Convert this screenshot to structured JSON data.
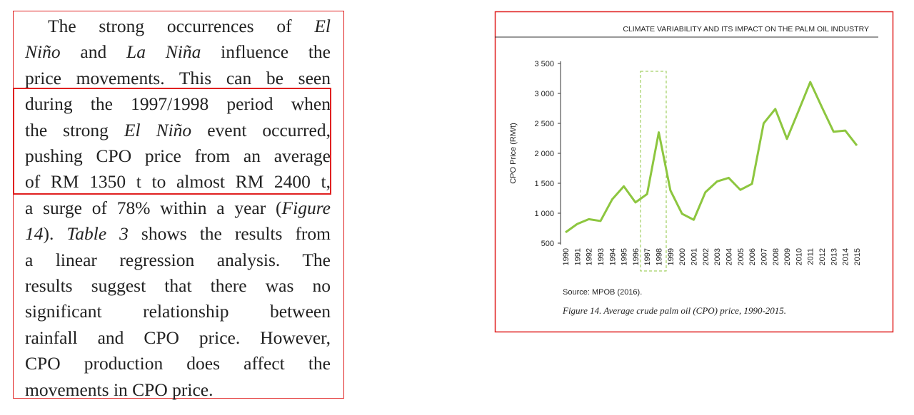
{
  "text": {
    "lines": [
      [
        {
          "text": "The strong occurrences of "
        },
        {
          "text": "El",
          "italic": true
        }
      ],
      [
        {
          "text": "Niño",
          "italic": true
        },
        {
          "text": " and "
        },
        {
          "text": "La Niña",
          "italic": true
        },
        {
          "text": " influence the"
        }
      ],
      [
        {
          "text": "price movements. This can be seen"
        }
      ],
      [
        {
          "text": "during the 1997/1998 period when"
        }
      ],
      [
        {
          "text": "the strong "
        },
        {
          "text": "El Niño",
          "italic": true
        },
        {
          "text": " event occurred,"
        }
      ],
      [
        {
          "text": "pushing CPO price from an average"
        }
      ],
      [
        {
          "text": "of RM 1350 t to almost RM 2400 t,"
        }
      ],
      [
        {
          "text": "a surge of 78% within a year ("
        },
        {
          "text": "Figure",
          "italic": true
        }
      ],
      [
        {
          "text": "14",
          "italic": true
        },
        {
          "text": "). "
        },
        {
          "text": "Table 3",
          "italic": true
        },
        {
          "text": " shows the results from"
        }
      ],
      [
        {
          "text": "a linear regression analysis. The"
        }
      ],
      [
        {
          "text": "results suggest that there was no"
        }
      ],
      [
        {
          "text": "significant relationship between"
        }
      ],
      [
        {
          "text": "rainfall and CPO price. However,"
        }
      ],
      [
        {
          "text": "CPO production does affect the"
        }
      ],
      [
        {
          "text": "movements in CPO price."
        }
      ]
    ]
  },
  "chart_data": {
    "type": "line",
    "header": "CLIMATE VARIABILITY AND ITS IMPACT ON THE PALM OIL INDUSTRY",
    "y_label": "CPO Price (RM/t)",
    "categories": [
      "1990",
      "1991",
      "1992",
      "1993",
      "1994",
      "1995",
      "1996",
      "1997",
      "1998",
      "1999",
      "2000",
      "2001",
      "2002",
      "2003",
      "2004",
      "2005",
      "2006",
      "2007",
      "2008",
      "2009",
      "2010",
      "2011",
      "2012",
      "2013",
      "2014",
      "2015"
    ],
    "series": [
      {
        "color": "#8dc63f",
        "values": [
          680,
          820,
          900,
          870,
          1230,
          1450,
          1180,
          1320,
          2350,
          1380,
          990,
          890,
          1350,
          1530,
          1590,
          1390,
          1490,
          2500,
          2740,
          2240,
          2710,
          3190,
          2770,
          2360,
          2380,
          2130
        ]
      }
    ],
    "ylim": [
      500,
      3500
    ],
    "yticks": [
      500,
      {
        "value": 1000,
        "label": "1 000"
      },
      {
        "value": 1500,
        "label": "1 500"
      },
      {
        "value": 2000,
        "label": "2 000"
      },
      {
        "value": 2500,
        "label": "2 500"
      },
      {
        "value": 3000,
        "label": "3 000"
      },
      {
        "value": 3500,
        "label": "3 500"
      }
    ],
    "source": "Source: MPOB (2016).",
    "caption": "Figure 14. Average crude palm oil (CPO) price, 1990-2015."
  }
}
